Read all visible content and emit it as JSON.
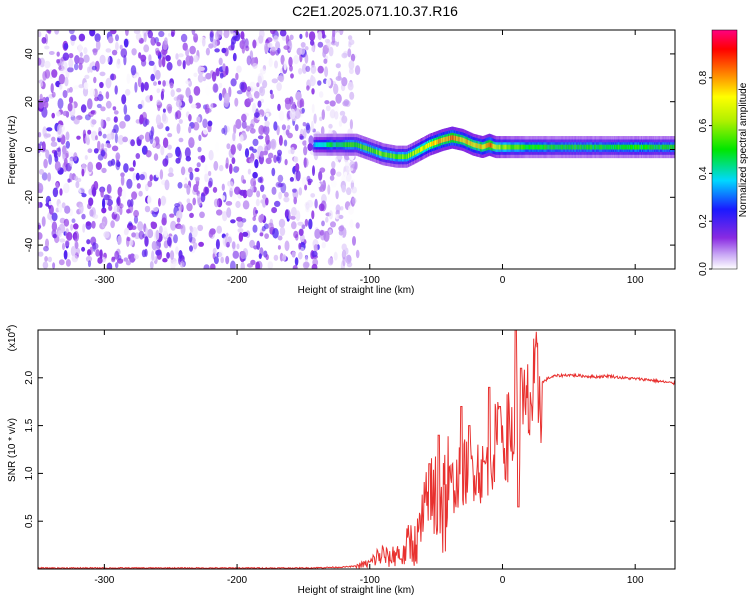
{
  "figure": {
    "title": "C2E1.2025.071.10.37.R16"
  },
  "chart_data": [
    {
      "type": "heatmap",
      "title": "C2E1.2025.071.10.37.R16",
      "xlabel": "Height of straight line (km)",
      "ylabel": "Frequency (Hz)",
      "xlim": [
        -350,
        130
      ],
      "ylim": [
        -50,
        50
      ],
      "x_ticks": [
        -300,
        -200,
        -100,
        0,
        100
      ],
      "y_ticks": [
        -40,
        -20,
        0,
        20,
        40
      ],
      "colorbar": {
        "label": "Normalized spectral amplitude",
        "range": [
          0,
          1
        ],
        "ticks": [
          "0.0",
          "0.2",
          "0.4",
          "0.6",
          "0.8"
        ],
        "colors": [
          "#ffffff",
          "#8a2be2",
          "#1a1aff",
          "#00d8ff",
          "#00e000",
          "#ffff00",
          "#ff8000",
          "#ff0000",
          "#ff0080"
        ]
      },
      "noise_region": {
        "x_range": [
          -350,
          -118
        ],
        "peak_amplitude": 0.2
      },
      "signal_track": {
        "x": [
          -142,
          -130,
          -120,
          -110,
          -100,
          -90,
          -80,
          -72,
          -65,
          -55,
          -45,
          -38,
          -30,
          -22,
          -15,
          -10,
          -5,
          0,
          20,
          40,
          60,
          80,
          100,
          130
        ],
        "frequency": [
          2,
          2,
          2,
          2,
          0,
          -2,
          -3,
          -3,
          -1,
          2,
          4,
          5,
          4,
          2,
          1,
          2,
          1,
          1,
          1,
          1,
          1,
          1,
          1,
          1
        ],
        "amplitude": [
          0.35,
          0.45,
          0.5,
          0.55,
          0.55,
          0.6,
          0.55,
          0.6,
          0.65,
          0.7,
          0.8,
          0.85,
          0.8,
          0.7,
          0.75,
          0.85,
          0.7,
          0.6,
          0.5,
          0.5,
          0.5,
          0.5,
          0.5,
          0.5
        ]
      }
    },
    {
      "type": "line",
      "xlabel": "Height of straight line (km)",
      "ylabel": "SNR (10 * v/v)",
      "y_multiplier": "(x10",
      "y_multiplier_exp": "4",
      "y_multiplier_close": ")",
      "xlim": [
        -350,
        130
      ],
      "ylim": [
        0,
        2.5
      ],
      "x_ticks": [
        -300,
        -200,
        -100,
        0,
        100
      ],
      "y_ticks": [
        0.5,
        1.0,
        1.5,
        2.0
      ],
      "y_tick_labels": [
        "0.5",
        "1.0",
        "1.5",
        "2.0"
      ],
      "color": "#e8312f",
      "series": [
        {
          "x": [
            -350,
            -300,
            -250,
            -200,
            -150,
            -120,
            -110,
            -100,
            -95,
            -90,
            -85,
            -80,
            -75,
            -70,
            -65,
            -60,
            -55,
            -50,
            -45,
            -40,
            -35,
            -30,
            -25,
            -20,
            -15,
            -10,
            -5,
            0,
            5,
            8,
            10,
            12,
            15,
            20,
            25,
            30,
            35,
            40,
            50,
            60,
            70,
            80,
            90,
            100,
            110,
            120,
            130
          ],
          "y": [
            0.01,
            0.01,
            0.01,
            0.01,
            0.01,
            0.02,
            0.03,
            0.06,
            0.12,
            0.15,
            0.1,
            0.18,
            0.12,
            0.3,
            0.25,
            0.5,
            0.6,
            0.8,
            0.7,
            0.85,
            0.9,
            1.0,
            1.05,
            1.1,
            1.0,
            1.2,
            1.3,
            1.35,
            1.4,
            1.45,
            1.3,
            1.5,
            1.55,
            1.7,
            1.85,
            1.95,
            2.0,
            2.02,
            2.03,
            2.02,
            2.01,
            2.02,
            2.0,
            1.99,
            1.98,
            1.96,
            1.94
          ]
        }
      ],
      "spikes": [
        {
          "x": -55,
          "y": 1.1
        },
        {
          "x": -48,
          "y": 1.4
        },
        {
          "x": -31,
          "y": 1.7
        },
        {
          "x": -25,
          "y": 1.5
        },
        {
          "x": -10,
          "y": 1.9
        },
        {
          "x": -2,
          "y": 1.7
        },
        {
          "x": 10,
          "y": 2.5
        },
        {
          "x": 12,
          "y": 0.65
        },
        {
          "x": 14,
          "y": 2.1
        }
      ]
    }
  ]
}
